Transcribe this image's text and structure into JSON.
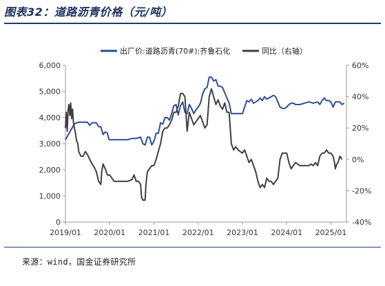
{
  "title": "图表32：道路沥青价格（元/吨）",
  "source": "来源：wind，国金证券研究所",
  "colors": {
    "series1": "#2e4c96",
    "series2": "#3f3f3f",
    "accent": "#1e3a6e"
  },
  "chart_data": {
    "type": "line",
    "x_tick_labels": [
      "2019/01",
      "2020/01",
      "2021/01",
      "2022/01",
      "2023/01",
      "2024/01",
      "2025/01"
    ],
    "y_left": {
      "ticks": [
        "0",
        "1,000",
        "2,000",
        "3,000",
        "4,000",
        "5,000",
        "6,000"
      ],
      "range": [
        0,
        6000
      ]
    },
    "y_right": {
      "ticks": [
        "-40%",
        "-20%",
        "0%",
        "20%",
        "40%",
        "60%"
      ],
      "range": [
        -40,
        60
      ]
    },
    "x_range": [
      2019.0,
      2025.35
    ],
    "grid": false,
    "legend_position": "top",
    "series": [
      {
        "name": "出厂价:道路沥青(70#):齐鲁石化",
        "axis": "left",
        "points": [
          [
            2019.0,
            3150
          ],
          [
            2019.05,
            3300
          ],
          [
            2019.1,
            3450
          ],
          [
            2019.15,
            3600
          ],
          [
            2019.2,
            3750
          ],
          [
            2019.25,
            3800
          ],
          [
            2019.3,
            3820
          ],
          [
            2019.4,
            3820
          ],
          [
            2019.5,
            3820
          ],
          [
            2019.55,
            3700
          ],
          [
            2019.6,
            3800
          ],
          [
            2019.7,
            3800
          ],
          [
            2019.75,
            3650
          ],
          [
            2019.8,
            3650
          ],
          [
            2019.85,
            3350
          ],
          [
            2019.9,
            3450
          ],
          [
            2019.95,
            3400
          ],
          [
            2019.98,
            3180
          ],
          [
            2020.0,
            3150
          ],
          [
            2020.2,
            3150
          ],
          [
            2020.4,
            3150
          ],
          [
            2020.5,
            3200
          ],
          [
            2020.6,
            3200
          ],
          [
            2020.7,
            3250
          ],
          [
            2020.75,
            3000
          ],
          [
            2020.8,
            2950
          ],
          [
            2020.85,
            3250
          ],
          [
            2020.9,
            3250
          ],
          [
            2020.95,
            2950
          ],
          [
            2021.0,
            3100
          ],
          [
            2021.02,
            3200
          ],
          [
            2021.05,
            3400
          ],
          [
            2021.1,
            3400
          ],
          [
            2021.15,
            3800
          ],
          [
            2021.2,
            3750
          ],
          [
            2021.25,
            4000
          ],
          [
            2021.3,
            4000
          ],
          [
            2021.35,
            3900
          ],
          [
            2021.4,
            4150
          ],
          [
            2021.45,
            4450
          ],
          [
            2021.5,
            4500
          ],
          [
            2021.55,
            4100
          ],
          [
            2021.6,
            4450
          ],
          [
            2021.65,
            4600
          ],
          [
            2021.7,
            4200
          ],
          [
            2021.75,
            4150
          ],
          [
            2021.8,
            4500
          ],
          [
            2021.85,
            4350
          ],
          [
            2021.9,
            4150
          ],
          [
            2021.95,
            4300
          ],
          [
            2022.0,
            4400
          ],
          [
            2022.05,
            4550
          ],
          [
            2022.1,
            4900
          ],
          [
            2022.15,
            5100
          ],
          [
            2022.2,
            5150
          ],
          [
            2022.25,
            5550
          ],
          [
            2022.3,
            5550
          ],
          [
            2022.35,
            5400
          ],
          [
            2022.4,
            5450
          ],
          [
            2022.45,
            5200
          ],
          [
            2022.5,
            5200
          ],
          [
            2022.55,
            5150
          ],
          [
            2022.6,
            4950
          ],
          [
            2022.65,
            4750
          ],
          [
            2022.7,
            4550
          ],
          [
            2022.75,
            4150
          ],
          [
            2022.8,
            4150
          ],
          [
            2022.9,
            4150
          ],
          [
            2023.0,
            4150
          ],
          [
            2023.05,
            4400
          ],
          [
            2023.1,
            4650
          ],
          [
            2023.15,
            4600
          ],
          [
            2023.2,
            4700
          ],
          [
            2023.25,
            4550
          ],
          [
            2023.3,
            4600
          ],
          [
            2023.35,
            4650
          ],
          [
            2023.4,
            4750
          ],
          [
            2023.45,
            4650
          ],
          [
            2023.5,
            4800
          ],
          [
            2023.55,
            4700
          ],
          [
            2023.6,
            4750
          ],
          [
            2023.65,
            4800
          ],
          [
            2023.7,
            4850
          ],
          [
            2023.75,
            4800
          ],
          [
            2023.8,
            4600
          ],
          [
            2023.85,
            4400
          ],
          [
            2023.9,
            4350
          ],
          [
            2023.95,
            4350
          ],
          [
            2024.0,
            4400
          ],
          [
            2024.05,
            4500
          ],
          [
            2024.1,
            4550
          ],
          [
            2024.15,
            4550
          ],
          [
            2024.2,
            4500
          ],
          [
            2024.3,
            4500
          ],
          [
            2024.4,
            4550
          ],
          [
            2024.5,
            4600
          ],
          [
            2024.6,
            4550
          ],
          [
            2024.7,
            4600
          ],
          [
            2024.75,
            4500
          ],
          [
            2024.8,
            4650
          ],
          [
            2024.85,
            4750
          ],
          [
            2024.9,
            4650
          ],
          [
            2024.95,
            4650
          ],
          [
            2025.0,
            4600
          ],
          [
            2025.05,
            4400
          ],
          [
            2025.1,
            4600
          ],
          [
            2025.15,
            4600
          ],
          [
            2025.2,
            4600
          ],
          [
            2025.25,
            4500
          ],
          [
            2025.3,
            4550
          ]
        ]
      },
      {
        "name": "同比（右轴）",
        "axis": "right",
        "points": [
          [
            2019.0,
            20
          ],
          [
            2019.02,
            30
          ],
          [
            2019.04,
            18
          ],
          [
            2019.06,
            32
          ],
          [
            2019.08,
            35
          ],
          [
            2019.1,
            28
          ],
          [
            2019.12,
            36
          ],
          [
            2019.14,
            26
          ],
          [
            2019.16,
            32
          ],
          [
            2019.18,
            24
          ],
          [
            2019.2,
            20
          ],
          [
            2019.22,
            18
          ],
          [
            2019.25,
            12
          ],
          [
            2019.28,
            10
          ],
          [
            2019.3,
            5
          ],
          [
            2019.35,
            2
          ],
          [
            2019.4,
            2
          ],
          [
            2019.45,
            5
          ],
          [
            2019.5,
            3
          ],
          [
            2019.55,
            0
          ],
          [
            2019.6,
            -3
          ],
          [
            2019.65,
            -5
          ],
          [
            2019.7,
            -8
          ],
          [
            2019.75,
            -14
          ],
          [
            2019.8,
            -16
          ],
          [
            2019.82,
            -8
          ],
          [
            2019.85,
            -3
          ],
          [
            2019.9,
            -6
          ],
          [
            2019.95,
            -10
          ],
          [
            2020.0,
            -10
          ],
          [
            2020.05,
            -12
          ],
          [
            2020.1,
            -14
          ],
          [
            2020.2,
            -14
          ],
          [
            2020.3,
            -14
          ],
          [
            2020.4,
            -14
          ],
          [
            2020.5,
            -13
          ],
          [
            2020.55,
            -10
          ],
          [
            2020.6,
            -14
          ],
          [
            2020.65,
            -14
          ],
          [
            2020.7,
            -16
          ],
          [
            2020.72,
            -24
          ],
          [
            2020.75,
            -26
          ],
          [
            2020.8,
            -26
          ],
          [
            2020.82,
            -16
          ],
          [
            2020.85,
            -8
          ],
          [
            2020.9,
            -6
          ],
          [
            2020.95,
            -4
          ],
          [
            2021.0,
            -4
          ],
          [
            2021.05,
            0
          ],
          [
            2021.1,
            5
          ],
          [
            2021.15,
            10
          ],
          [
            2021.2,
            18
          ],
          [
            2021.25,
            20
          ],
          [
            2021.3,
            20
          ],
          [
            2021.35,
            22
          ],
          [
            2021.4,
            25
          ],
          [
            2021.45,
            30
          ],
          [
            2021.5,
            30
          ],
          [
            2021.55,
            34
          ],
          [
            2021.6,
            42
          ],
          [
            2021.65,
            42
          ],
          [
            2021.7,
            40
          ],
          [
            2021.75,
            18
          ],
          [
            2021.8,
            30
          ],
          [
            2021.85,
            26
          ],
          [
            2021.9,
            22
          ],
          [
            2021.95,
            24
          ],
          [
            2022.0,
            26
          ],
          [
            2022.05,
            28
          ],
          [
            2022.1,
            24
          ],
          [
            2022.15,
            20
          ],
          [
            2022.2,
            22
          ],
          [
            2022.25,
            40
          ],
          [
            2022.3,
            45
          ],
          [
            2022.35,
            40
          ],
          [
            2022.4,
            35
          ],
          [
            2022.45,
            38
          ],
          [
            2022.5,
            34
          ],
          [
            2022.55,
            32
          ],
          [
            2022.6,
            36
          ],
          [
            2022.65,
            30
          ],
          [
            2022.7,
            30
          ],
          [
            2022.75,
            10
          ],
          [
            2022.8,
            6
          ],
          [
            2022.85,
            8
          ],
          [
            2022.9,
            6
          ],
          [
            2022.95,
            5
          ],
          [
            2023.0,
            4
          ],
          [
            2023.05,
            6
          ],
          [
            2023.1,
            2
          ],
          [
            2023.15,
            -2
          ],
          [
            2023.2,
            0
          ],
          [
            2023.25,
            -4
          ],
          [
            2023.3,
            -8
          ],
          [
            2023.35,
            -14
          ],
          [
            2023.4,
            -18
          ],
          [
            2023.45,
            -16
          ],
          [
            2023.5,
            -18
          ],
          [
            2023.55,
            -12
          ],
          [
            2023.6,
            -14
          ],
          [
            2023.65,
            -14
          ],
          [
            2023.7,
            -16
          ],
          [
            2023.75,
            -14
          ],
          [
            2023.8,
            -12
          ],
          [
            2023.85,
            0
          ],
          [
            2023.9,
            4
          ],
          [
            2023.95,
            4
          ],
          [
            2024.0,
            4
          ],
          [
            2024.05,
            -2
          ],
          [
            2024.1,
            -6
          ],
          [
            2024.15,
            -4
          ],
          [
            2024.2,
            -2
          ],
          [
            2024.3,
            -4
          ],
          [
            2024.4,
            -4
          ],
          [
            2024.5,
            -4
          ],
          [
            2024.55,
            -3
          ],
          [
            2024.6,
            -4
          ],
          [
            2024.65,
            -2
          ],
          [
            2024.7,
            -4
          ],
          [
            2024.75,
            2
          ],
          [
            2024.8,
            4
          ],
          [
            2024.85,
            4
          ],
          [
            2024.9,
            6
          ],
          [
            2024.95,
            4
          ],
          [
            2025.0,
            4
          ],
          [
            2025.05,
            2
          ],
          [
            2025.08,
            -2
          ],
          [
            2025.1,
            -6
          ],
          [
            2025.13,
            -3
          ],
          [
            2025.16,
            -2
          ],
          [
            2025.2,
            2
          ],
          [
            2025.25,
            0
          ]
        ]
      }
    ]
  }
}
